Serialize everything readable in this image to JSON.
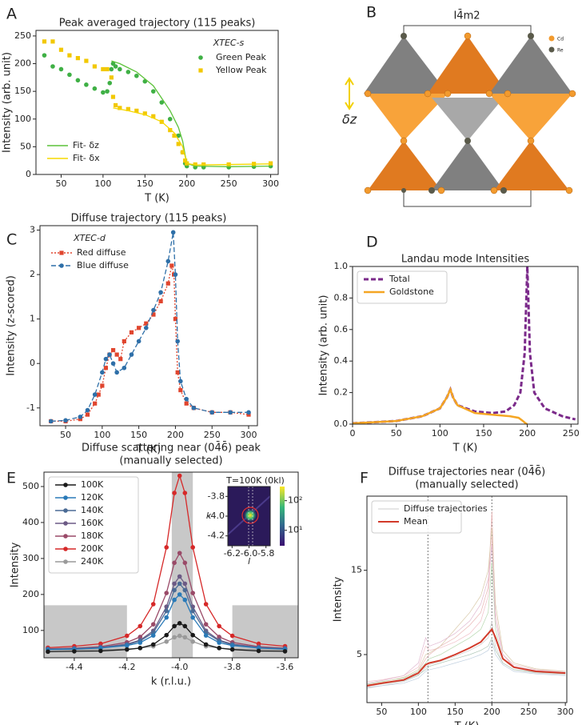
{
  "diagram": {
    "label": "B",
    "title": "I4̄m2",
    "symbol": "δz",
    "legend": [
      "Cd",
      "Re"
    ]
  },
  "chart_data": [
    {
      "type": "scatter",
      "label": "A",
      "title": "Peak averaged trajectory (115 peaks)",
      "xlabel": "T (K)",
      "ylabel": "Intensity (arb. unit)",
      "xlim": [
        20,
        309
      ],
      "ylim": [
        0,
        260
      ],
      "xticks": [
        50,
        100,
        150,
        200,
        250,
        300
      ],
      "yticks": [
        0,
        50,
        100,
        150,
        200,
        250
      ],
      "legend": "upper right",
      "legend_title": "XTEC-s",
      "line_legend": "lower left",
      "series": [
        {
          "name": "Green Peak",
          "color": "#3fb045",
          "style": "markers",
          "marker": "circle",
          "x": [
            30,
            40,
            50,
            60,
            70,
            80,
            90,
            100,
            105,
            108,
            110,
            112,
            115,
            120,
            130,
            140,
            150,
            160,
            170,
            180,
            190,
            195,
            198,
            200,
            210,
            220,
            250,
            280,
            300
          ],
          "values": [
            215,
            195,
            190,
            180,
            170,
            162,
            155,
            148,
            150,
            165,
            190,
            200,
            195,
            190,
            185,
            178,
            168,
            150,
            130,
            100,
            70,
            40,
            20,
            15,
            13,
            13,
            13,
            14,
            15
          ]
        },
        {
          "name": "Yellow Peak",
          "color": "#f2c800",
          "style": "markers",
          "marker": "square",
          "x": [
            30,
            40,
            50,
            60,
            70,
            80,
            90,
            100,
            105,
            110,
            112,
            115,
            120,
            130,
            140,
            150,
            160,
            170,
            180,
            185,
            190,
            195,
            198,
            200,
            210,
            220,
            250,
            280,
            300
          ],
          "values": [
            240,
            240,
            225,
            215,
            210,
            205,
            195,
            190,
            190,
            175,
            140,
            125,
            120,
            118,
            115,
            110,
            105,
            95,
            80,
            70,
            55,
            40,
            25,
            20,
            18,
            18,
            18,
            19,
            20
          ]
        },
        {
          "name": "Fit- δz",
          "color": "#5cc23a",
          "style": "line",
          "x": [
            110,
            120,
            140,
            160,
            180,
            190,
            195,
            198,
            200,
            210,
            250,
            300
          ],
          "values": [
            205,
            200,
            185,
            160,
            115,
            85,
            60,
            35,
            20,
            15,
            14,
            15
          ]
        },
        {
          "name": "Fit- δx",
          "color": "#f5d800",
          "style": "line",
          "x": [
            112,
            130,
            150,
            170,
            185,
            195,
            200,
            210,
            300
          ],
          "values": [
            120,
            115,
            108,
            95,
            75,
            50,
            20,
            17,
            19
          ]
        }
      ]
    },
    {
      "type": "line",
      "label": "C",
      "title": "Diffuse trajectory (115 peaks)",
      "xlabel": "T (K)",
      "ylabel": "Intensity (z-scored)",
      "xlim": [
        15,
        312
      ],
      "ylim": [
        -1.4,
        3.1
      ],
      "xticks": [
        50,
        100,
        150,
        200,
        250,
        300
      ],
      "yticks": [
        -1,
        0,
        1,
        2,
        3
      ],
      "legend": "upper left",
      "legend_title": "XTEC-d",
      "series": [
        {
          "name": "Red diffuse",
          "color": "#e0452e",
          "style": "line+markers",
          "marker": "square",
          "dash": "dotted",
          "x": [
            30,
            50,
            70,
            80,
            90,
            95,
            100,
            105,
            110,
            115,
            120,
            125,
            130,
            140,
            150,
            160,
            170,
            180,
            190,
            195,
            198,
            200,
            203,
            207,
            215,
            225,
            250,
            275,
            300
          ],
          "values": [
            -1.3,
            -1.3,
            -1.25,
            -1.15,
            -0.9,
            -0.7,
            -0.5,
            -0.1,
            0.2,
            0.3,
            0.2,
            0.1,
            0.5,
            0.7,
            0.8,
            0.9,
            1.1,
            1.4,
            1.8,
            2.2,
            2.0,
            1.0,
            -0.2,
            -0.6,
            -0.9,
            -1.0,
            -1.1,
            -1.1,
            -1.15
          ]
        },
        {
          "name": "Blue diffuse",
          "color": "#2e6fa8",
          "style": "line+markers",
          "marker": "circle",
          "dash": "dashed",
          "x": [
            30,
            50,
            70,
            80,
            90,
            100,
            105,
            110,
            115,
            120,
            130,
            140,
            150,
            160,
            170,
            180,
            190,
            197,
            200,
            203,
            207,
            215,
            225,
            250,
            275,
            300
          ],
          "values": [
            -1.3,
            -1.28,
            -1.2,
            -1.05,
            -0.7,
            -0.2,
            0.1,
            0.2,
            0.0,
            -0.2,
            -0.1,
            0.2,
            0.5,
            0.8,
            1.2,
            1.6,
            2.3,
            2.95,
            2.0,
            0.5,
            -0.4,
            -0.8,
            -1.0,
            -1.1,
            -1.1,
            -1.1
          ]
        }
      ]
    },
    {
      "type": "line",
      "label": "D",
      "title": "Landau mode Intensities",
      "xlabel": "T (K)",
      "ylabel": "Intensity (arb. unit)",
      "xlim": [
        0,
        258
      ],
      "ylim": [
        0,
        1
      ],
      "xticks": [
        0,
        50,
        100,
        150,
        200,
        250
      ],
      "yticks": [
        {
          "value": 0,
          "label": "0.0"
        },
        0.2,
        0.4,
        0.6,
        0.8,
        {
          "value": 1,
          "label": "1.0"
        }
      ],
      "legend": "upper left",
      "series": [
        {
          "name": "Total",
          "color": "#7b2a8a",
          "style": "line",
          "dash": "dashed",
          "width": 3,
          "x": [
            0,
            50,
            80,
            100,
            108,
            112,
            115,
            120,
            140,
            160,
            175,
            185,
            192,
            197,
            200,
            203,
            208,
            220,
            240,
            255
          ],
          "values": [
            0.005,
            0.02,
            0.05,
            0.1,
            0.17,
            0.22,
            0.17,
            0.12,
            0.08,
            0.07,
            0.08,
            0.12,
            0.2,
            0.45,
            1.0,
            0.45,
            0.2,
            0.1,
            0.05,
            0.03
          ]
        },
        {
          "name": "Goldstone",
          "color": "#f5a623",
          "style": "line",
          "width": 2.5,
          "x": [
            0,
            50,
            80,
            100,
            108,
            112,
            115,
            120,
            140,
            160,
            180,
            190,
            195,
            198,
            200
          ],
          "values": [
            0.005,
            0.02,
            0.05,
            0.1,
            0.17,
            0.22,
            0.17,
            0.12,
            0.07,
            0.06,
            0.05,
            0.04,
            0.02,
            0.005,
            0
          ]
        }
      ]
    },
    {
      "type": "line",
      "label": "E",
      "title": "Diffuse scattering near (04̄6̄) peak",
      "subtitle": "(manually selected)",
      "xlabel": "k (r.l.u.)",
      "ylabel": "Intensity",
      "xlim": [
        -4.515,
        -3.55
      ],
      "ylim": [
        24,
        540
      ],
      "xticks": [
        -4.4,
        -4.2,
        {
          "value": -4,
          "label": "-4.0"
        },
        -3.8,
        -3.6
      ],
      "yticks": [
        100,
        200,
        300,
        400,
        500
      ],
      "legend": "upper left",
      "shaded_regions": [
        {
          "x": [
            -4.515,
            -4.2
          ],
          "y": [
            24,
            170
          ]
        },
        {
          "x": [
            -3.8,
            -3.55
          ],
          "y": [
            24,
            170
          ]
        },
        {
          "x": [
            -4.03,
            -3.95
          ],
          "y": [
            24,
            540
          ]
        }
      ],
      "x": [
        -4.5,
        -4.4,
        -4.3,
        -4.2,
        -4.15,
        -4.1,
        -4.05,
        -4.02,
        -4.0,
        -3.98,
        -3.95,
        -3.9,
        -3.85,
        -3.8,
        -3.7,
        -3.6
      ],
      "series": [
        {
          "name": "100K",
          "color": "#1a1a1a",
          "style": "line+markers",
          "marker": "circle",
          "values": [
            41,
            42,
            43,
            47,
            51,
            61,
            87,
            112,
            120,
            112,
            87,
            61,
            51,
            47,
            43,
            42
          ]
        },
        {
          "name": "120K",
          "color": "#2a7ab8",
          "style": "line+markers",
          "marker": "circle",
          "values": [
            47,
            48,
            51,
            58,
            66,
            86,
            136,
            185,
            200,
            185,
            136,
            86,
            66,
            58,
            51,
            48
          ]
        },
        {
          "name": "140K",
          "color": "#4b6b95",
          "style": "line+markers",
          "marker": "circle",
          "values": [
            48,
            49,
            52,
            60,
            71,
            94,
            154,
            212,
            230,
            212,
            154,
            94,
            71,
            60,
            52,
            49
          ]
        },
        {
          "name": "160K",
          "color": "#6c5a85",
          "style": "line+markers",
          "marker": "circle",
          "values": [
            48,
            50,
            53,
            62,
            73,
            99,
            166,
            230,
            250,
            230,
            166,
            99,
            73,
            62,
            53,
            50
          ]
        },
        {
          "name": "180K",
          "color": "#9a4a68",
          "style": "line+markers",
          "marker": "circle",
          "values": [
            49,
            51,
            55,
            67,
            82,
            117,
            204,
            288,
            315,
            288,
            204,
            117,
            82,
            67,
            55,
            51
          ]
        },
        {
          "name": "200K",
          "color": "#d62828",
          "style": "line+markers",
          "marker": "circle",
          "values": [
            52,
            56,
            63,
            85,
            112,
            173,
            331,
            482,
            530,
            482,
            331,
            173,
            112,
            85,
            63,
            56
          ]
        },
        {
          "name": "240K",
          "color": "#9a9a9a",
          "style": "line+markers",
          "marker": "circle",
          "values": [
            46,
            46,
            47,
            48,
            51,
            56,
            69,
            81,
            85,
            81,
            69,
            56,
            51,
            48,
            47,
            46
          ]
        }
      ],
      "inset": {
        "title": "T=100K (0kl)",
        "xlabel": "l",
        "ylabel": "k",
        "xlim": [
          -6.25,
          -5.75
        ],
        "ylim": [
          -4.3,
          -3.7
        ],
        "xticks": [
          -6.2,
          {
            "value": -6,
            "label": "-6.0"
          },
          -5.8
        ],
        "yticks": [
          -4.2,
          {
            "value": -4,
            "label": "-4.0"
          },
          -3.8
        ],
        "colorbar_scale": "log",
        "clim": [
          3,
          300
        ],
        "colorbar_ticks": [
          {
            "value": 10,
            "label": "10¹"
          },
          {
            "value": 100,
            "label": "10²"
          }
        ]
      }
    },
    {
      "type": "line",
      "label": "F",
      "title": "Diffuse trajectories near (04̄6̄)",
      "subtitle": "(manually selected)",
      "xlabel": "T (K)",
      "ylabel": "Intensity",
      "xlim": [
        30,
        302
      ],
      "ylim": [
        -0.7,
        23.8
      ],
      "xticks": [
        50,
        100,
        150,
        200,
        250,
        300
      ],
      "yticks": [
        5,
        15
      ],
      "legend": "upper left",
      "vlines": [
        113,
        200
      ],
      "x": [
        30,
        50,
        80,
        100,
        110,
        115,
        130,
        150,
        170,
        185,
        195,
        200,
        205,
        215,
        230,
        260,
        300
      ],
      "trajectories": {
        "name": "Diffuse trajectories",
        "legend_color": "#bdbdbd",
        "colors": [
          "#e8b4b4",
          "#b8d8b0",
          "#cccccc",
          "#f0c0c8",
          "#c0d0e0",
          "#d8c8a8",
          "#b0c8b8",
          "#e0b8d0"
        ],
        "values": [
          [
            1.2,
            1.5,
            2.0,
            3.0,
            4.5,
            5,
            6,
            7,
            8.5,
            10,
            13,
            22,
            9,
            5,
            3.5,
            3,
            2.8
          ],
          [
            1.5,
            1.8,
            2.2,
            3,
            4,
            4.5,
            5,
            6,
            7,
            8,
            10,
            16,
            8,
            4.5,
            3.5,
            3,
            2.8
          ],
          [
            1.0,
            1.3,
            1.8,
            2.5,
            3.5,
            3.8,
            4.2,
            4.8,
            5.5,
            6.2,
            7,
            9,
            6,
            4,
            3.2,
            2.8,
            2.6
          ],
          [
            1.8,
            2,
            2.5,
            3.5,
            6,
            5.5,
            5.8,
            6.5,
            7.5,
            9,
            12,
            19,
            10,
            5,
            3.8,
            3.2,
            3
          ],
          [
            1.1,
            1.3,
            1.6,
            2.2,
            3,
            3.2,
            3.5,
            4,
            4.5,
            5,
            5.5,
            6.5,
            5,
            3.8,
            3,
            2.7,
            2.5
          ],
          [
            1.4,
            1.7,
            2.3,
            3.2,
            5,
            5.2,
            6,
            8,
            10,
            12,
            15,
            20,
            11,
            5.5,
            4,
            3.3,
            3
          ],
          [
            1.3,
            1.5,
            1.9,
            2.6,
            3.2,
            3.6,
            4,
            4.5,
            5,
            5.5,
            6,
            7,
            5.5,
            4,
            3.2,
            2.9,
            2.7
          ],
          [
            1.6,
            1.9,
            2.5,
            4,
            7,
            6,
            6.5,
            7.5,
            9,
            11,
            14,
            18,
            9,
            5,
            3.6,
            3.1,
            2.9
          ]
        ]
      },
      "series": [
        {
          "name": "Mean",
          "color": "#d23a2a",
          "style": "line",
          "width": 2,
          "values": [
            1.3,
            1.6,
            2.0,
            2.8,
            3.8,
            4.0,
            4.3,
            5.0,
            5.8,
            6.5,
            7.5,
            8.0,
            7.0,
            4.5,
            3.5,
            3.0,
            2.8
          ]
        }
      ]
    }
  ]
}
